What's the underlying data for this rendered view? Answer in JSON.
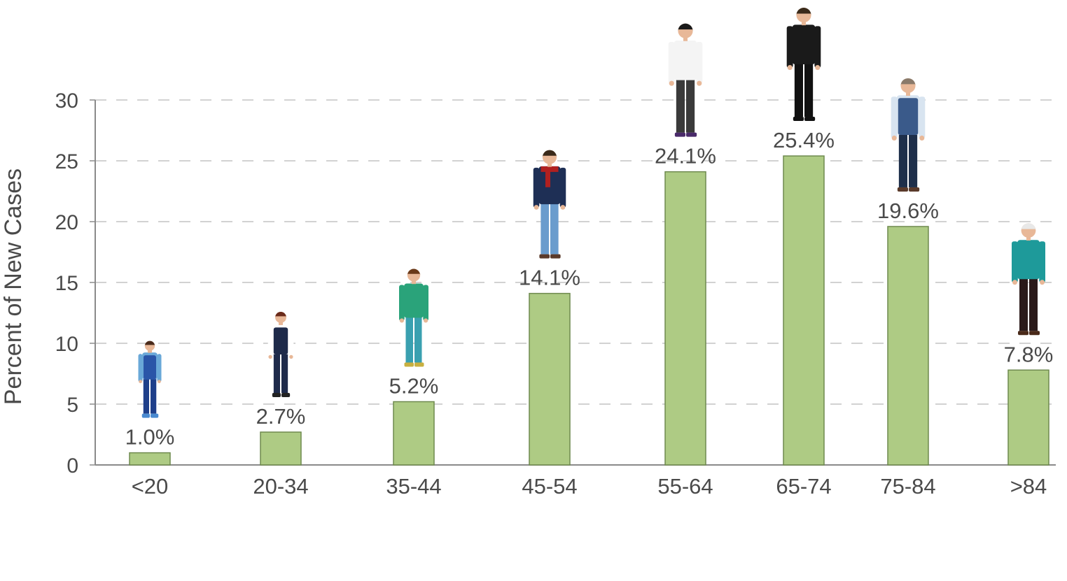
{
  "chart_data": {
    "type": "bar",
    "ylabel": "Percent of New Cases",
    "xlabel": "",
    "ylim": [
      0,
      30
    ],
    "yticks": [
      0,
      5,
      10,
      15,
      20,
      25,
      30
    ],
    "grid": "horizontal-dashed",
    "categories": [
      "<20",
      "20-34",
      "35-44",
      "45-54",
      "55-64",
      "65-74",
      "75-84",
      ">84"
    ],
    "values": [
      1.0,
      2.7,
      5.2,
      14.1,
      24.1,
      25.4,
      19.6,
      7.8
    ],
    "data_labels": [
      "1.0%",
      "2.7%",
      "5.2%",
      "14.1%",
      "24.1%",
      "25.4%",
      "19.6%",
      "7.8%"
    ],
    "bar_color": "#aecb84",
    "bar_stroke": "#6f8a4f",
    "figure_icons": [
      "child-figure-icon",
      "young-man-vest-icon",
      "man-baseball-bat-icon",
      "man-red-scarf-icon",
      "man-white-shirt-icon",
      "man-black-suit-icon",
      "older-man-vest-icon",
      "elderly-man-sweater-icon"
    ]
  }
}
